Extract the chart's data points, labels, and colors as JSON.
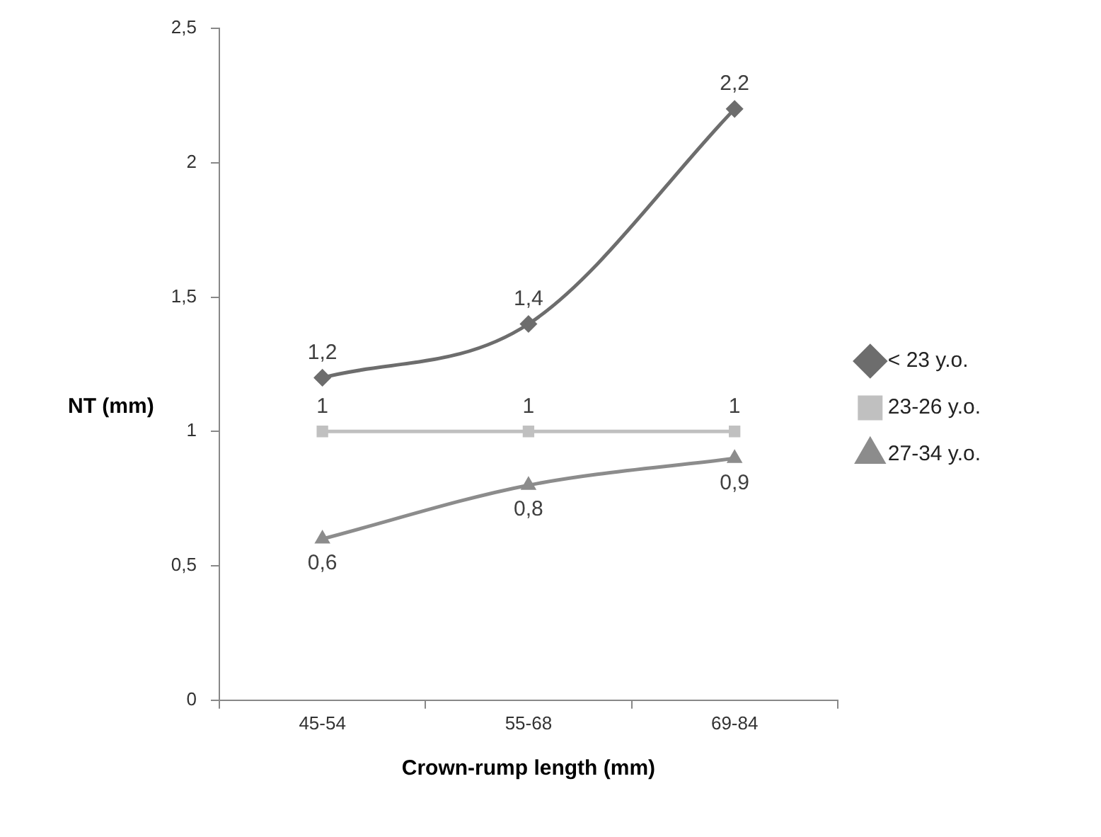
{
  "chart_data": {
    "type": "line",
    "xlabel": "Crown-rump length (mm)",
    "ylabel": "NT (mm)",
    "categories": [
      "45-54",
      "55-68",
      "69-84"
    ],
    "ylim": [
      0,
      2.5
    ],
    "yticks": [
      0,
      {
        "value": 0.5,
        "label": "0,5"
      },
      1,
      {
        "value": 1.5,
        "label": "1,5"
      },
      2,
      {
        "value": 2.5,
        "label": "2,5"
      }
    ],
    "grid": false,
    "legend": "right",
    "series": [
      {
        "name": "< 23 y.o.",
        "color": "#6d6d6d",
        "marker": "diamond",
        "values": [
          1.2,
          1.4,
          2.2
        ],
        "value_labels": [
          "1,2",
          "1,4",
          "2,2"
        ]
      },
      {
        "name": "23-26 y.o.",
        "color": "#c0c0c0",
        "marker": "square",
        "values": [
          1,
          1,
          1
        ],
        "value_labels": [
          "1",
          "1",
          "1"
        ]
      },
      {
        "name": "27-34 y.o.",
        "color": "#8c8c8c",
        "marker": "triangle",
        "values": [
          0.6,
          0.8,
          0.9
        ],
        "value_labels": [
          "0,6",
          "0,8",
          "0,9"
        ]
      }
    ]
  }
}
